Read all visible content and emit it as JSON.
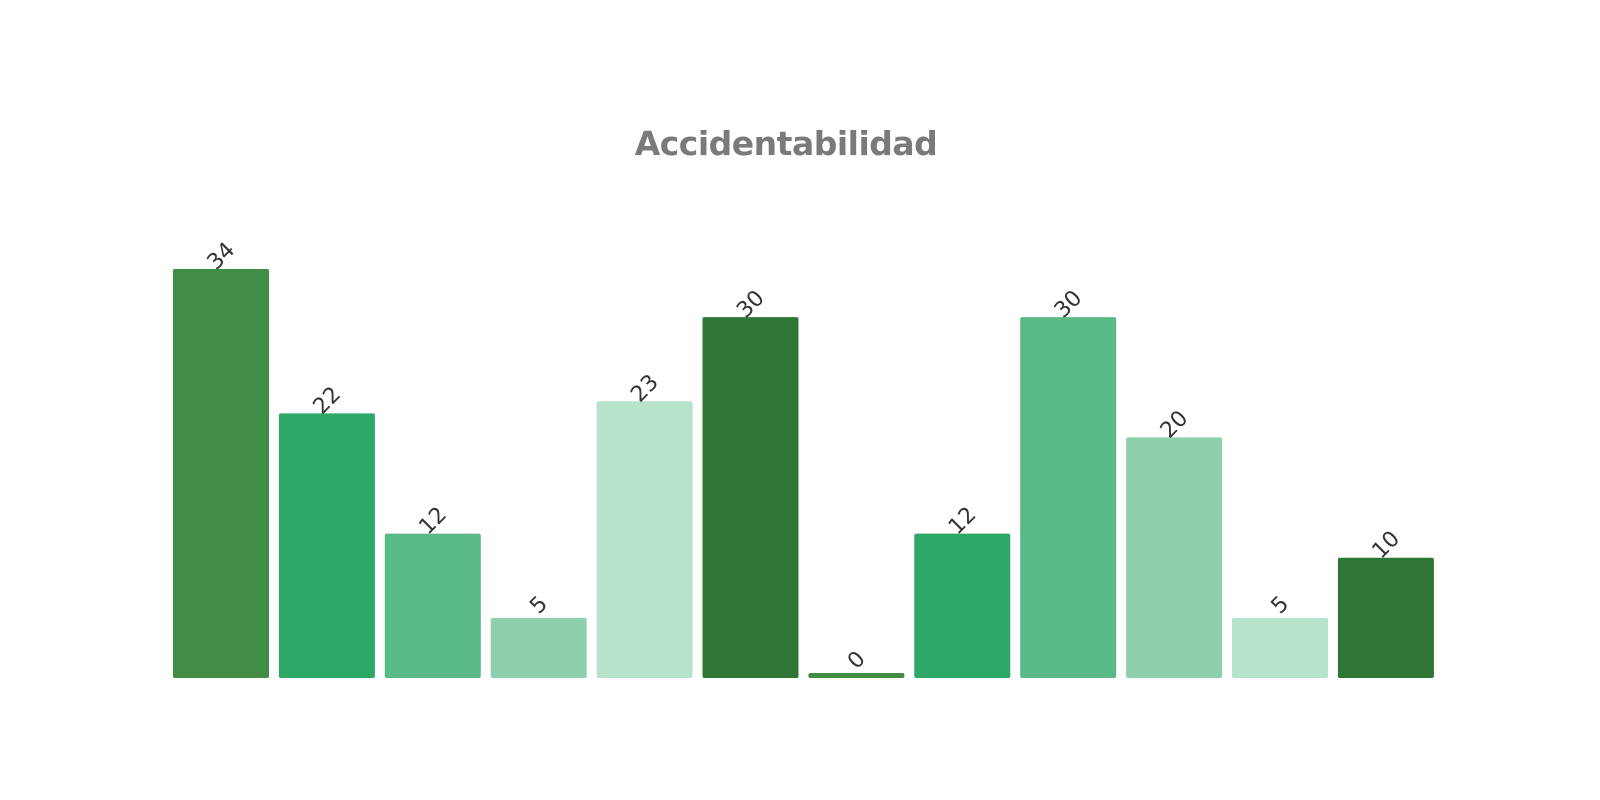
{
  "chart_data": {
    "type": "bar",
    "title": "Accidentabilidad",
    "xlabel": "",
    "ylabel": "",
    "ylim": [
      0,
      34
    ],
    "grid": false,
    "legend": "none",
    "values": [
      34,
      22,
      12,
      5,
      23,
      30,
      0,
      12,
      30,
      20,
      5,
      10
    ],
    "value_labels": [
      "34",
      "22",
      "12",
      "5",
      "23",
      "30",
      "0",
      "12",
      "30",
      "20",
      "5",
      "10"
    ],
    "colors": [
      "#418d46",
      "#2ea866",
      "#5aba87",
      "#8ed0ad",
      "#b7e2cb",
      "#2f7535",
      "#418d46",
      "#2ea866",
      "#5aba87",
      "#8ed0ad",
      "#b7e2cb",
      "#2f7535"
    ]
  }
}
